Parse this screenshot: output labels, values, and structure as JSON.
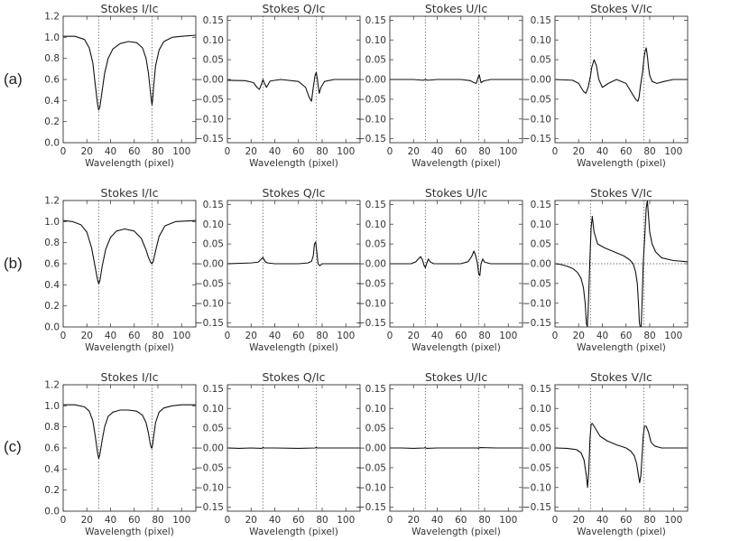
{
  "row_labels": [
    "(a)",
    "(b)",
    "(c)"
  ],
  "chart_data": [
    {
      "type": "line",
      "title": "Stokes I/Ic",
      "xlabel": "Wavelength (pixel)",
      "ylabel": "",
      "xlim": [
        0,
        112
      ],
      "ylim": [
        0,
        1.2
      ],
      "yticks": [
        "0.0",
        "0.2",
        "0.4",
        "0.6",
        "0.8",
        "1.0",
        "1.2"
      ],
      "xticks": [
        "0",
        "20",
        "40",
        "60",
        "80",
        "100"
      ],
      "vlines": [
        30,
        75
      ],
      "hline": null,
      "series": [
        {
          "x": [
            0,
            10,
            18,
            22,
            25,
            27,
            29,
            30,
            31,
            33,
            35,
            38,
            42,
            48,
            55,
            62,
            67,
            70,
            72,
            73.5,
            74.5,
            75,
            75.5,
            76.5,
            78,
            81,
            85,
            92,
            100,
            112
          ],
          "y": [
            1.01,
            1.01,
            0.98,
            0.9,
            0.76,
            0.56,
            0.37,
            0.31,
            0.34,
            0.5,
            0.66,
            0.8,
            0.89,
            0.94,
            0.96,
            0.95,
            0.9,
            0.8,
            0.66,
            0.5,
            0.4,
            0.36,
            0.4,
            0.55,
            0.73,
            0.88,
            0.96,
            1.0,
            1.01,
            1.02
          ]
        }
      ]
    },
    {
      "type": "line",
      "title": "Stokes Q/Ic",
      "xlabel": "Wavelength (pixel)",
      "ylabel": "",
      "xlim": [
        0,
        112
      ],
      "ylim": [
        -0.16,
        0.16
      ],
      "yticks": [
        "−0.15",
        "−0.10",
        "−0.05",
        "−0.00",
        "0.05",
        "0.10",
        "0.15"
      ],
      "xticks": [
        "0",
        "20",
        "40",
        "60",
        "80",
        "100"
      ],
      "vlines": [
        30,
        75
      ],
      "hline": null,
      "series": [
        {
          "x": [
            0,
            15,
            22,
            25,
            27,
            29,
            30,
            31,
            33,
            36,
            45,
            60,
            66,
            69,
            71,
            72.5,
            74,
            75,
            76,
            77.5,
            79,
            82,
            90,
            112
          ],
          "y": [
            -0.002,
            -0.003,
            -0.008,
            -0.02,
            -0.025,
            -0.01,
            0.0,
            -0.008,
            -0.02,
            -0.004,
            0.0,
            -0.005,
            -0.02,
            -0.045,
            -0.055,
            -0.02,
            0.01,
            0.018,
            0.0,
            -0.035,
            -0.02,
            -0.005,
            0.0,
            0.0
          ]
        }
      ]
    },
    {
      "type": "line",
      "title": "Stokes U/Ic",
      "xlabel": "Wavelength (pixel)",
      "ylabel": "",
      "xlim": [
        0,
        112
      ],
      "ylim": [
        -0.16,
        0.16
      ],
      "yticks": [
        "−0.15",
        "−0.10",
        "−0.05",
        "−0.00",
        "0.05",
        "0.10",
        "0.15"
      ],
      "xticks": [
        "0",
        "20",
        "40",
        "60",
        "80",
        "100"
      ],
      "vlines": [
        30,
        75
      ],
      "hline": null,
      "series": [
        {
          "x": [
            0,
            20,
            28,
            30,
            32,
            40,
            60,
            68,
            71,
            73,
            74.5,
            75.5,
            77,
            79,
            85,
            112
          ],
          "y": [
            0.0,
            0.0,
            -0.002,
            0.0,
            -0.002,
            0.0,
            0.0,
            -0.003,
            -0.008,
            -0.01,
            0.005,
            0.012,
            -0.008,
            -0.004,
            0.0,
            0.0
          ]
        }
      ]
    },
    {
      "type": "line",
      "title": "Stokes V/Ic",
      "xlabel": "Wavelength (pixel)",
      "ylabel": "",
      "xlim": [
        0,
        112
      ],
      "ylim": [
        -0.16,
        0.16
      ],
      "yticks": [
        "−0.15",
        "−0.10",
        "−0.05",
        "−0.00",
        "0.05",
        "0.10",
        "0.15"
      ],
      "xticks": [
        "0",
        "20",
        "40",
        "60",
        "80",
        "100"
      ],
      "vlines": [
        30,
        75
      ],
      "hline": null,
      "series": [
        {
          "x": [
            0,
            15,
            20,
            24,
            26,
            28,
            30,
            31,
            33,
            35,
            37,
            40,
            45,
            52,
            60,
            65,
            68,
            70,
            71,
            72,
            73,
            74,
            75,
            76,
            77,
            78,
            79,
            80,
            82,
            86,
            92,
            100,
            112
          ],
          "y": [
            0.0,
            -0.002,
            -0.01,
            -0.03,
            -0.035,
            -0.02,
            0.01,
            0.03,
            0.05,
            0.035,
            0.0,
            -0.02,
            -0.01,
            0.0,
            -0.01,
            -0.035,
            -0.05,
            -0.055,
            -0.045,
            -0.02,
            0.0,
            0.02,
            0.05,
            0.07,
            0.08,
            0.06,
            0.03,
            0.01,
            -0.005,
            -0.01,
            -0.005,
            0.0,
            0.0
          ]
        }
      ]
    },
    {
      "type": "line",
      "title": "Stokes I/Ic",
      "xlabel": "Wavelength (pixel)",
      "ylabel": "",
      "xlim": [
        0,
        112
      ],
      "ylim": [
        0,
        1.2
      ],
      "yticks": [
        "0.0",
        "0.2",
        "0.4",
        "0.6",
        "0.8",
        "1.0",
        "1.2"
      ],
      "xticks": [
        "0",
        "20",
        "40",
        "60",
        "80",
        "100"
      ],
      "vlines": [
        30,
        75
      ],
      "hline": null,
      "series": [
        {
          "x": [
            0,
            8,
            15,
            20,
            24,
            27,
            29,
            30,
            31,
            33,
            36,
            40,
            45,
            52,
            60,
            66,
            70,
            72,
            74,
            75,
            76,
            78,
            81,
            86,
            95,
            112
          ],
          "y": [
            1.01,
            1.0,
            0.97,
            0.9,
            0.75,
            0.57,
            0.45,
            0.41,
            0.44,
            0.58,
            0.74,
            0.85,
            0.91,
            0.93,
            0.91,
            0.84,
            0.73,
            0.66,
            0.61,
            0.6,
            0.62,
            0.72,
            0.86,
            0.96,
            1.0,
            1.01
          ]
        }
      ]
    },
    {
      "type": "line",
      "title": "Stokes Q/Ic",
      "xlabel": "Wavelength (pixel)",
      "ylabel": "",
      "xlim": [
        0,
        112
      ],
      "ylim": [
        -0.16,
        0.16
      ],
      "yticks": [
        "−0.15",
        "−0.10",
        "−0.05",
        "−0.00",
        "0.05",
        "0.10",
        "0.15"
      ],
      "xticks": [
        "0",
        "20",
        "40",
        "60",
        "80",
        "100"
      ],
      "vlines": [
        30,
        75
      ],
      "hline": null,
      "series": [
        {
          "x": [
            0,
            20,
            26,
            28,
            30,
            32,
            34,
            40,
            60,
            68,
            71,
            72.5,
            73.5,
            74.5,
            75.5,
            76.5,
            78,
            80,
            90,
            112
          ],
          "y": [
            0.0,
            0.002,
            0.004,
            0.01,
            0.016,
            0.005,
            0.002,
            0.0,
            0.0,
            0.002,
            0.006,
            0.02,
            0.05,
            0.055,
            0.03,
            0.0,
            -0.005,
            0.0,
            0.0,
            0.0
          ]
        }
      ]
    },
    {
      "type": "line",
      "title": "Stokes U/Ic",
      "xlabel": "Wavelength (pixel)",
      "ylabel": "",
      "xlim": [
        0,
        112
      ],
      "ylim": [
        -0.16,
        0.16
      ],
      "yticks": [
        "−0.15",
        "−0.10",
        "−0.05",
        "−0.00",
        "0.05",
        "0.10",
        "0.15"
      ],
      "xticks": [
        "0",
        "20",
        "40",
        "60",
        "80",
        "100"
      ],
      "vlines": [
        30,
        75
      ],
      "hline": null,
      "series": [
        {
          "x": [
            0,
            18,
            22,
            24,
            26,
            27.5,
            29,
            30,
            31,
            32.5,
            34,
            37,
            45,
            60,
            66,
            69,
            71,
            72.5,
            74,
            75,
            76,
            77,
            78.5,
            80,
            85,
            112
          ],
          "y": [
            0.0,
            0.0,
            0.005,
            0.012,
            0.018,
            0.01,
            -0.005,
            -0.01,
            0.0,
            0.012,
            0.005,
            0.0,
            0.0,
            0.0,
            0.005,
            0.018,
            0.032,
            0.02,
            0.0,
            -0.025,
            -0.03,
            0.0,
            0.012,
            0.004,
            0.0,
            0.0
          ]
        }
      ]
    },
    {
      "type": "line",
      "title": "Stokes V/Ic",
      "xlabel": "Wavelength (pixel)",
      "ylabel": "",
      "xlim": [
        0,
        112
      ],
      "ylim": [
        -0.16,
        0.16
      ],
      "yticks": [
        "−0.15",
        "−0.10",
        "−0.05",
        "−0.00",
        "0.05",
        "0.10",
        "0.15"
      ],
      "xticks": [
        "0",
        "20",
        "40",
        "60",
        "80",
        "100"
      ],
      "vlines": [
        30,
        75
      ],
      "hline": 0,
      "series": [
        {
          "x": [
            0,
            5,
            10,
            15,
            19,
            22,
            24,
            25.5,
            26.5,
            27.3,
            28,
            28.8,
            29.6,
            30.5,
            31.5,
            33,
            36,
            42,
            50,
            58,
            63,
            66,
            68,
            69.5,
            70.5,
            71.3,
            72,
            72.8,
            73.5,
            74.5,
            76,
            77,
            78,
            79,
            80,
            82,
            85,
            90,
            100,
            112
          ],
          "y": [
            0.0,
            -0.002,
            -0.006,
            -0.012,
            -0.022,
            -0.037,
            -0.06,
            -0.1,
            -0.15,
            -0.16,
            -0.12,
            -0.05,
            0.02,
            0.09,
            0.12,
            0.08,
            0.05,
            0.04,
            0.03,
            0.02,
            0.01,
            0.0,
            -0.02,
            -0.05,
            -0.1,
            -0.15,
            -0.16,
            -0.16,
            -0.1,
            0.0,
            0.08,
            0.14,
            0.16,
            0.12,
            0.08,
            0.05,
            0.03,
            0.015,
            0.008,
            0.005
          ]
        }
      ]
    },
    {
      "type": "line",
      "title": "Stokes I/Ic",
      "xlabel": "Wavelength (pixel)",
      "ylabel": "",
      "xlim": [
        0,
        112
      ],
      "ylim": [
        0,
        1.2
      ],
      "yticks": [
        "0.0",
        "0.2",
        "0.4",
        "0.6",
        "0.8",
        "1.0",
        "1.2"
      ],
      "xticks": [
        "0",
        "20",
        "40",
        "60",
        "80",
        "100"
      ],
      "vlines": [
        30,
        75
      ],
      "hline": null,
      "series": [
        {
          "x": [
            0,
            10,
            18,
            22,
            25,
            27,
            29,
            30,
            31,
            33,
            35,
            38,
            42,
            48,
            55,
            62,
            67,
            70,
            72,
            73.5,
            74.5,
            75,
            75.5,
            76.5,
            78,
            81,
            85,
            92,
            100,
            112
          ],
          "y": [
            1.01,
            1.01,
            0.99,
            0.95,
            0.86,
            0.72,
            0.56,
            0.5,
            0.54,
            0.68,
            0.8,
            0.9,
            0.94,
            0.96,
            0.96,
            0.95,
            0.91,
            0.84,
            0.74,
            0.64,
            0.6,
            0.6,
            0.63,
            0.72,
            0.84,
            0.94,
            0.98,
            1.0,
            1.01,
            1.01
          ]
        }
      ]
    },
    {
      "type": "line",
      "title": "Stokes Q/Ic",
      "xlabel": "Wavelength (pixel)",
      "ylabel": "",
      "xlim": [
        0,
        112
      ],
      "ylim": [
        -0.16,
        0.16
      ],
      "yticks": [
        "−0.15",
        "−0.10",
        "−0.05",
        "−0.00",
        "0.05",
        "0.10",
        "0.15"
      ],
      "xticks": [
        "0",
        "20",
        "40",
        "60",
        "80",
        "100"
      ],
      "vlines": [
        30,
        75
      ],
      "hline": null,
      "series": [
        {
          "x": [
            0,
            10,
            20,
            29,
            30,
            31,
            40,
            60,
            74,
            75,
            76,
            90,
            112
          ],
          "y": [
            0.0,
            -0.001,
            0.0,
            -0.001,
            0.001,
            0.0,
            0.0,
            -0.001,
            0.0,
            0.001,
            0.0,
            0.0,
            0.0
          ]
        }
      ]
    },
    {
      "type": "line",
      "title": "Stokes U/Ic",
      "xlabel": "Wavelength (pixel)",
      "ylabel": "",
      "xlim": [
        0,
        112
      ],
      "ylim": [
        -0.16,
        0.16
      ],
      "yticks": [
        "−0.15",
        "−0.10",
        "−0.05",
        "−0.00",
        "0.05",
        "0.10",
        "0.15"
      ],
      "xticks": [
        "0",
        "20",
        "40",
        "60",
        "80",
        "100"
      ],
      "vlines": [
        30,
        75
      ],
      "hline": null,
      "series": [
        {
          "x": [
            0,
            10,
            20,
            29,
            30,
            31,
            40,
            60,
            74,
            75,
            76,
            90,
            112
          ],
          "y": [
            0.0,
            0.0,
            -0.001,
            0.0,
            0.001,
            -0.001,
            0.0,
            0.0,
            0.0,
            -0.001,
            0.001,
            0.0,
            0.0
          ]
        }
      ]
    },
    {
      "type": "line",
      "title": "Stokes V/Ic",
      "xlabel": "Wavelength (pixel)",
      "ylabel": "",
      "xlim": [
        0,
        112
      ],
      "ylim": [
        -0.16,
        0.16
      ],
      "yticks": [
        "−0.15",
        "−0.10",
        "−0.05",
        "−0.00",
        "0.05",
        "0.10",
        "0.15"
      ],
      "xticks": [
        "0",
        "20",
        "40",
        "60",
        "80",
        "100"
      ],
      "vlines": [
        30,
        75
      ],
      "hline": null,
      "series": [
        {
          "x": [
            0,
            10,
            18,
            22,
            24.5,
            26.5,
            27.5,
            28.5,
            29.5,
            30.5,
            31.5,
            34,
            38,
            44,
            52,
            60,
            64,
            67,
            69,
            70.5,
            71.5,
            72.5,
            73.5,
            74.5,
            75.5,
            77,
            79,
            81,
            84,
            90,
            100,
            112
          ],
          "y": [
            0.0,
            -0.001,
            -0.004,
            -0.012,
            -0.03,
            -0.07,
            -0.1,
            -0.06,
            0.02,
            0.06,
            0.062,
            0.05,
            0.03,
            0.018,
            0.008,
            0.0,
            -0.008,
            -0.02,
            -0.04,
            -0.07,
            -0.088,
            -0.07,
            -0.02,
            0.03,
            0.055,
            0.055,
            0.04,
            0.015,
            0.005,
            0.0,
            0.0,
            0.0
          ]
        }
      ]
    }
  ]
}
